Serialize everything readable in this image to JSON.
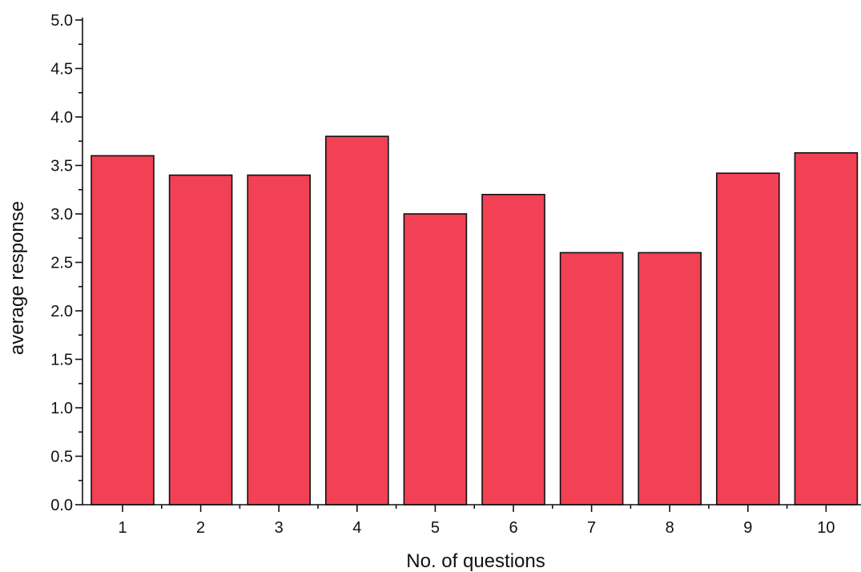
{
  "chart_data": {
    "type": "bar",
    "categories": [
      "1",
      "2",
      "3",
      "4",
      "5",
      "6",
      "7",
      "8",
      "9",
      "10"
    ],
    "values": [
      3.6,
      3.4,
      3.4,
      3.8,
      3.0,
      3.2,
      2.6,
      2.6,
      3.42,
      3.63
    ],
    "title": "",
    "xlabel": "No. of questions",
    "ylabel": "average response",
    "ylim": [
      0,
      5.0
    ],
    "yticks": [
      "0.0",
      "0.5",
      "1.0",
      "1.5",
      "2.0",
      "2.5",
      "3.0",
      "3.5",
      "4.0",
      "4.5",
      "5.0"
    ],
    "bar_color": "#f24055",
    "grid": false,
    "legend": "none"
  }
}
